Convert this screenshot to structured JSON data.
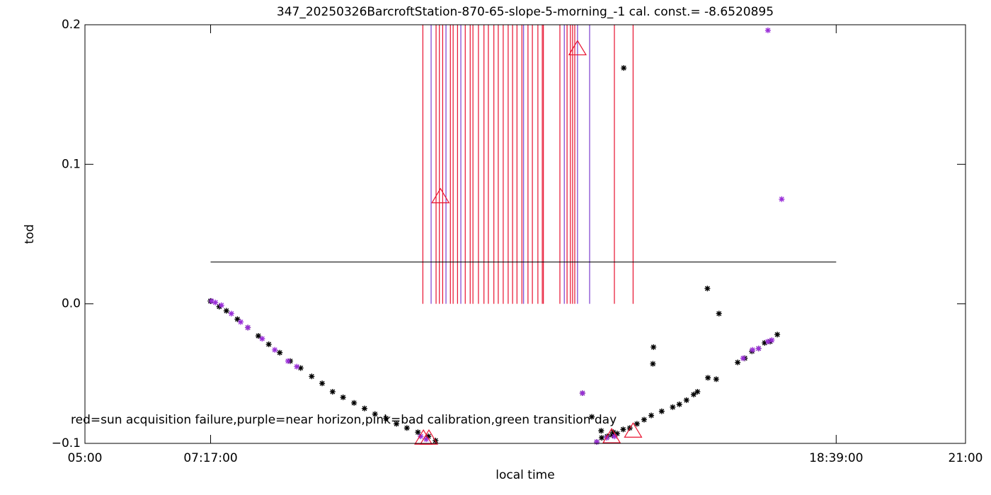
{
  "chart_data": {
    "type": "scatter",
    "title": "347_20250326BarcroftStation-870-65-slope-5-morning_-1 cal. const.= -8.6520895",
    "xlabel": "local time",
    "ylabel": "tod",
    "annotation": "red=sun acquisition failure,purple=near horizon,pink=bad calibration,green transition day",
    "xlim": [
      5,
      21
    ],
    "ylim": [
      -0.1,
      0.2
    ],
    "xticks": [
      {
        "value": 5,
        "label": "05:00"
      },
      {
        "value": 7.2833,
        "label": "07:17:00"
      },
      {
        "value": 18.65,
        "label": "18:39:00"
      },
      {
        "value": 21,
        "label": "21:00"
      }
    ],
    "yticks": [
      {
        "value": -0.1,
        "label": "−0.1"
      },
      {
        "value": 0,
        "label": "0.0"
      },
      0.1,
      0.2
    ],
    "vline_span": [
      0,
      0.2
    ],
    "vlines": [
      {
        "color": "#e8102e",
        "x": [
          11.14,
          11.38,
          11.44,
          11.5,
          11.64,
          11.69,
          11.77,
          11.91,
          12.0,
          12.05,
          12.15,
          12.25,
          12.33,
          12.43,
          12.51,
          12.6,
          12.69,
          12.77,
          12.85,
          12.94,
          13.05,
          13.13,
          13.23,
          13.31,
          13.33,
          13.63,
          13.76,
          13.82,
          13.86,
          13.9,
          14.62,
          14.96
        ]
      },
      {
        "color": "#7a3ccf",
        "x": [
          11.29,
          11.56,
          11.83,
          12.97,
          13.71,
          13.95,
          14.17
        ]
      }
    ],
    "hline": {
      "y": 0.03,
      "x": [
        7.2833,
        18.65
      ],
      "color": "#000000"
    },
    "series": [
      {
        "color": "#000000",
        "marker": "asterisk",
        "x": [
          7.28,
          7.44,
          7.57,
          7.77,
          7.96,
          8.15,
          8.34,
          8.54,
          8.73,
          8.92,
          9.12,
          9.31,
          9.5,
          9.69,
          9.89,
          10.08,
          10.27,
          10.47,
          10.66,
          10.85,
          11.05,
          11.24,
          11.37,
          14.3,
          14.39,
          14.49,
          14.58,
          14.67,
          14.78,
          14.9,
          15.03,
          15.16,
          15.29,
          15.48,
          15.68,
          15.8,
          15.93,
          16.06,
          16.13,
          16.32,
          16.47,
          16.86,
          16.99,
          17.12,
          17.24,
          17.35,
          17.45,
          17.58,
          14.79,
          16.31,
          16.52,
          15.33,
          15.32,
          14.04,
          14.21,
          14.38,
          14.6
        ],
        "values": [
          0.002,
          -0.002,
          -0.005,
          -0.011,
          -0.017,
          -0.023,
          -0.029,
          -0.035,
          -0.041,
          -0.046,
          -0.052,
          -0.057,
          -0.063,
          -0.067,
          -0.071,
          -0.075,
          -0.079,
          -0.082,
          -0.086,
          -0.089,
          -0.092,
          -0.095,
          -0.098,
          -0.099,
          -0.096,
          -0.095,
          -0.094,
          -0.093,
          -0.09,
          -0.089,
          -0.086,
          -0.083,
          -0.08,
          -0.077,
          -0.074,
          -0.072,
          -0.069,
          -0.065,
          -0.063,
          -0.053,
          -0.054,
          -0.042,
          -0.039,
          -0.034,
          -0.032,
          -0.028,
          -0.027,
          -0.022,
          0.169,
          0.011,
          -0.007,
          -0.031,
          -0.043,
          -0.064,
          -0.081,
          -0.091,
          -0.092
        ]
      },
      {
        "color": "#9a2fd8",
        "marker": "asterisk",
        "x": [
          7.3,
          7.37,
          7.48,
          7.66,
          7.83,
          7.96,
          8.22,
          8.45,
          8.69,
          8.85,
          11.1,
          11.2,
          14.3,
          14.48,
          14.62,
          14.04,
          17.41,
          17.66,
          16.96,
          17.13,
          17.24,
          17.41,
          17.48
        ],
        "values": [
          0.002,
          0.001,
          -0.001,
          -0.007,
          -0.013,
          -0.017,
          -0.025,
          -0.033,
          -0.041,
          -0.045,
          -0.095,
          -0.097,
          -0.099,
          -0.096,
          -0.095,
          -0.064,
          0.196,
          0.075,
          -0.039,
          -0.033,
          -0.032,
          -0.027,
          -0.026
        ]
      },
      {
        "color": "#e8102e",
        "marker": "triangle",
        "x": [
          11.46,
          13.95,
          11.15,
          11.25,
          14.57,
          14.96
        ],
        "values": [
          0.077,
          0.183,
          -0.096,
          -0.096,
          -0.095,
          -0.091
        ]
      }
    ]
  }
}
